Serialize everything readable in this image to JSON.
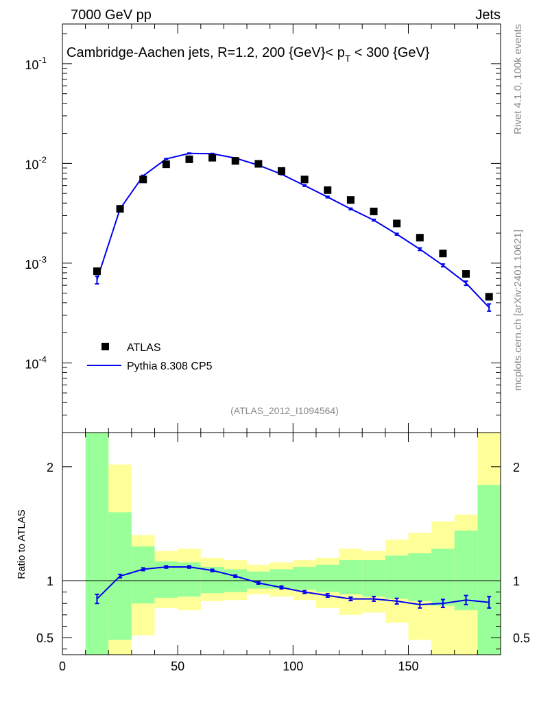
{
  "header": {
    "left": "7000 GeV pp",
    "right": "Jets"
  },
  "side_text": {
    "top": "Rivet 4.1.0,  100k events",
    "bottom": "mcplots.cern.ch [arXiv:2401.10621]"
  },
  "watermark": "(ATLAS_2012_I1094564)",
  "colors": {
    "mc": "#0000ee",
    "data": "#000000",
    "band_inner": "#99ff99",
    "band_outer": "#ffff99"
  },
  "chart_data": [
    {
      "type": "scatter",
      "title": "Cambridge-Aachen jets, R=1.2,  200 {GeV}< p_T < 300 {GeV}",
      "title_parts": {
        "main": "Cambridge-Aachen jets, R=1.2,  200 {GeV}< p",
        "sub": "T",
        "tail": " < 300 {GeV}"
      },
      "yscale": "log",
      "xlim": [
        0,
        190
      ],
      "ylim": [
        2e-05,
        0.25
      ],
      "yticks": [
        {
          "value": 0.1,
          "base": "10",
          "exp": "-1"
        },
        {
          "value": 0.01,
          "base": "10",
          "exp": "-2"
        },
        {
          "value": 0.001,
          "base": "10",
          "exp": "-3"
        },
        {
          "value": 0.0001,
          "base": "10",
          "exp": "-4"
        }
      ],
      "legend": {
        "placement": "bottom-left",
        "entries": [
          "ATLAS",
          "Pythia 8.308 CP5"
        ]
      },
      "series": [
        {
          "name": "ATLAS",
          "style": "markers",
          "x": [
            15,
            25,
            35,
            45,
            55,
            65,
            75,
            85,
            95,
            105,
            115,
            125,
            135,
            145,
            155,
            165,
            175,
            185
          ],
          "y": [
            0.00083,
            0.0035,
            0.0069,
            0.0098,
            0.011,
            0.0114,
            0.0106,
            0.0099,
            0.0084,
            0.0069,
            0.0054,
            0.0043,
            0.0033,
            0.0025,
            0.0018,
            0.00125,
            0.00078,
            0.00046
          ]
        },
        {
          "name": "Pythia 8.308 CP5",
          "style": "line",
          "x": [
            15,
            25,
            35,
            45,
            55,
            65,
            75,
            85,
            95,
            105,
            115,
            125,
            135,
            145,
            155,
            165,
            175,
            185
          ],
          "y": [
            0.00068,
            0.0035,
            0.0075,
            0.0111,
            0.0126,
            0.0125,
            0.0113,
            0.0096,
            0.0078,
            0.006,
            0.0046,
            0.0035,
            0.0027,
            0.00195,
            0.00138,
            0.00095,
            0.00063,
            0.00036
          ],
          "yerr": [
            6e-05,
            0.0001,
            0.0001,
            0.0001,
            0.0001,
            0.0001,
            0.0001,
            0.0001,
            0.0001,
            0.0001,
            8e-05,
            6e-05,
            5e-05,
            4e-05,
            4e-05,
            3e-05,
            3e-05,
            3e-05
          ]
        }
      ]
    },
    {
      "type": "line",
      "ylabel": "Ratio to ATLAS",
      "xlabel": "",
      "xlim": [
        0,
        190
      ],
      "ylim": [
        0.35,
        2.3
      ],
      "xticks": [
        "0",
        "50",
        "100",
        "150"
      ],
      "xtick_values": [
        0,
        50,
        100,
        150
      ],
      "yticks": [
        "0.5",
        "1",
        "2"
      ],
      "ytick_values": [
        0.5,
        1,
        2
      ],
      "reference_line": 1,
      "bands": {
        "edges": [
          10,
          20,
          30,
          40,
          50,
          60,
          70,
          80,
          90,
          100,
          110,
          120,
          130,
          140,
          150,
          160,
          170,
          180,
          190
        ],
        "inner_lo": [
          0.35,
          0.48,
          0.8,
          0.85,
          0.86,
          0.89,
          0.9,
          0.93,
          0.93,
          0.92,
          0.9,
          0.88,
          0.86,
          0.84,
          0.82,
          0.78,
          0.74,
          0.35
        ],
        "inner_hi": [
          2.3,
          1.6,
          1.3,
          1.17,
          1.16,
          1.12,
          1.1,
          1.08,
          1.1,
          1.12,
          1.14,
          1.18,
          1.18,
          1.22,
          1.24,
          1.28,
          1.44,
          1.84
        ],
        "outer_lo": [
          0.35,
          0.35,
          0.52,
          0.76,
          0.74,
          0.82,
          0.83,
          0.88,
          0.86,
          0.83,
          0.76,
          0.7,
          0.72,
          0.63,
          0.48,
          0.35,
          0.35,
          0.35
        ],
        "outer_hi": [
          2.3,
          2.02,
          1.4,
          1.26,
          1.28,
          1.2,
          1.18,
          1.14,
          1.16,
          1.18,
          1.2,
          1.28,
          1.26,
          1.36,
          1.42,
          1.52,
          1.58,
          2.3
        ]
      },
      "series": [
        {
          "name": "Pythia 8.308 CP5",
          "x": [
            15,
            25,
            35,
            45,
            55,
            65,
            75,
            85,
            95,
            105,
            115,
            125,
            135,
            145,
            155,
            165,
            175,
            185
          ],
          "y": [
            0.84,
            1.04,
            1.1,
            1.12,
            1.12,
            1.09,
            1.04,
            0.98,
            0.94,
            0.9,
            0.87,
            0.84,
            0.84,
            0.82,
            0.79,
            0.8,
            0.83,
            0.81
          ],
          "yerr": [
            0.04,
            0.015,
            0.012,
            0.01,
            0.01,
            0.01,
            0.01,
            0.01,
            0.012,
            0.012,
            0.015,
            0.015,
            0.02,
            0.025,
            0.03,
            0.035,
            0.04,
            0.05
          ]
        }
      ]
    }
  ]
}
